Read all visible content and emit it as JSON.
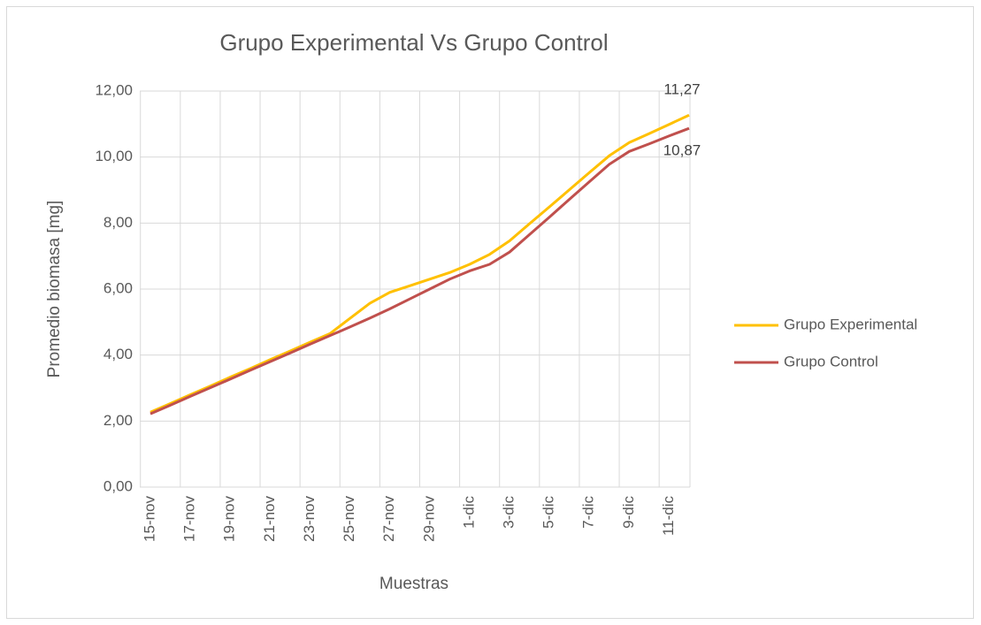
{
  "chart_data": {
    "type": "line",
    "title": "Grupo Experimental Vs Grupo Control",
    "x_label": "Muestras",
    "y_label": "Promedio biomasa [mg]",
    "categories": [
      "15-nov",
      null,
      "17-nov",
      null,
      "19-nov",
      null,
      "21-nov",
      null,
      "23-nov",
      null,
      "25-nov",
      null,
      "27-nov",
      null,
      "29-nov",
      null,
      "1-dic",
      null,
      "3-dic",
      null,
      "5-dic",
      null,
      "7-dic",
      null,
      "9-dic",
      null,
      "11-dic",
      null
    ],
    "series": [
      {
        "name": "Grupo Experimental",
        "color": "#ffc000",
        "values": [
          2.27,
          2.53,
          2.8,
          3.06,
          3.33,
          3.59,
          3.86,
          4.12,
          4.39,
          4.65,
          5.11,
          5.57,
          5.9,
          6.1,
          6.3,
          6.5,
          6.75,
          7.05,
          7.46,
          7.98,
          8.49,
          9.01,
          9.53,
          10.04,
          10.44,
          10.71,
          10.99,
          11.27
        ],
        "value_labels": [
          null,
          null,
          null,
          null,
          null,
          null,
          null,
          null,
          null,
          null,
          null,
          null,
          null,
          null,
          null,
          null,
          null,
          null,
          null,
          null,
          null,
          null,
          null,
          null,
          null,
          null,
          null,
          "11,27"
        ]
      },
      {
        "name": "Grupo Control",
        "color": "#c0504d",
        "values": [
          2.22,
          2.48,
          2.75,
          3.01,
          3.27,
          3.54,
          3.8,
          4.06,
          4.33,
          4.59,
          4.85,
          5.12,
          5.4,
          5.7,
          6.0,
          6.3,
          6.55,
          6.75,
          7.12,
          7.65,
          8.18,
          8.72,
          9.25,
          9.78,
          10.17,
          10.4,
          10.64,
          10.87
        ],
        "value_labels": [
          null,
          null,
          null,
          null,
          null,
          null,
          null,
          null,
          null,
          null,
          null,
          null,
          null,
          null,
          null,
          null,
          null,
          null,
          null,
          null,
          null,
          null,
          null,
          null,
          null,
          null,
          null,
          "10,87"
        ]
      }
    ],
    "ylim": [
      0,
      12
    ],
    "yticks": [
      {
        "value": 0,
        "label": "0,00"
      },
      {
        "value": 2,
        "label": "2,00"
      },
      {
        "value": 4,
        "label": "4,00"
      },
      {
        "value": 6,
        "label": "6,00"
      },
      {
        "value": 8,
        "label": "8,00"
      },
      {
        "value": 10,
        "label": "10,00"
      },
      {
        "value": 12,
        "label": "12,00"
      }
    ],
    "grid": true,
    "legend": "right"
  }
}
